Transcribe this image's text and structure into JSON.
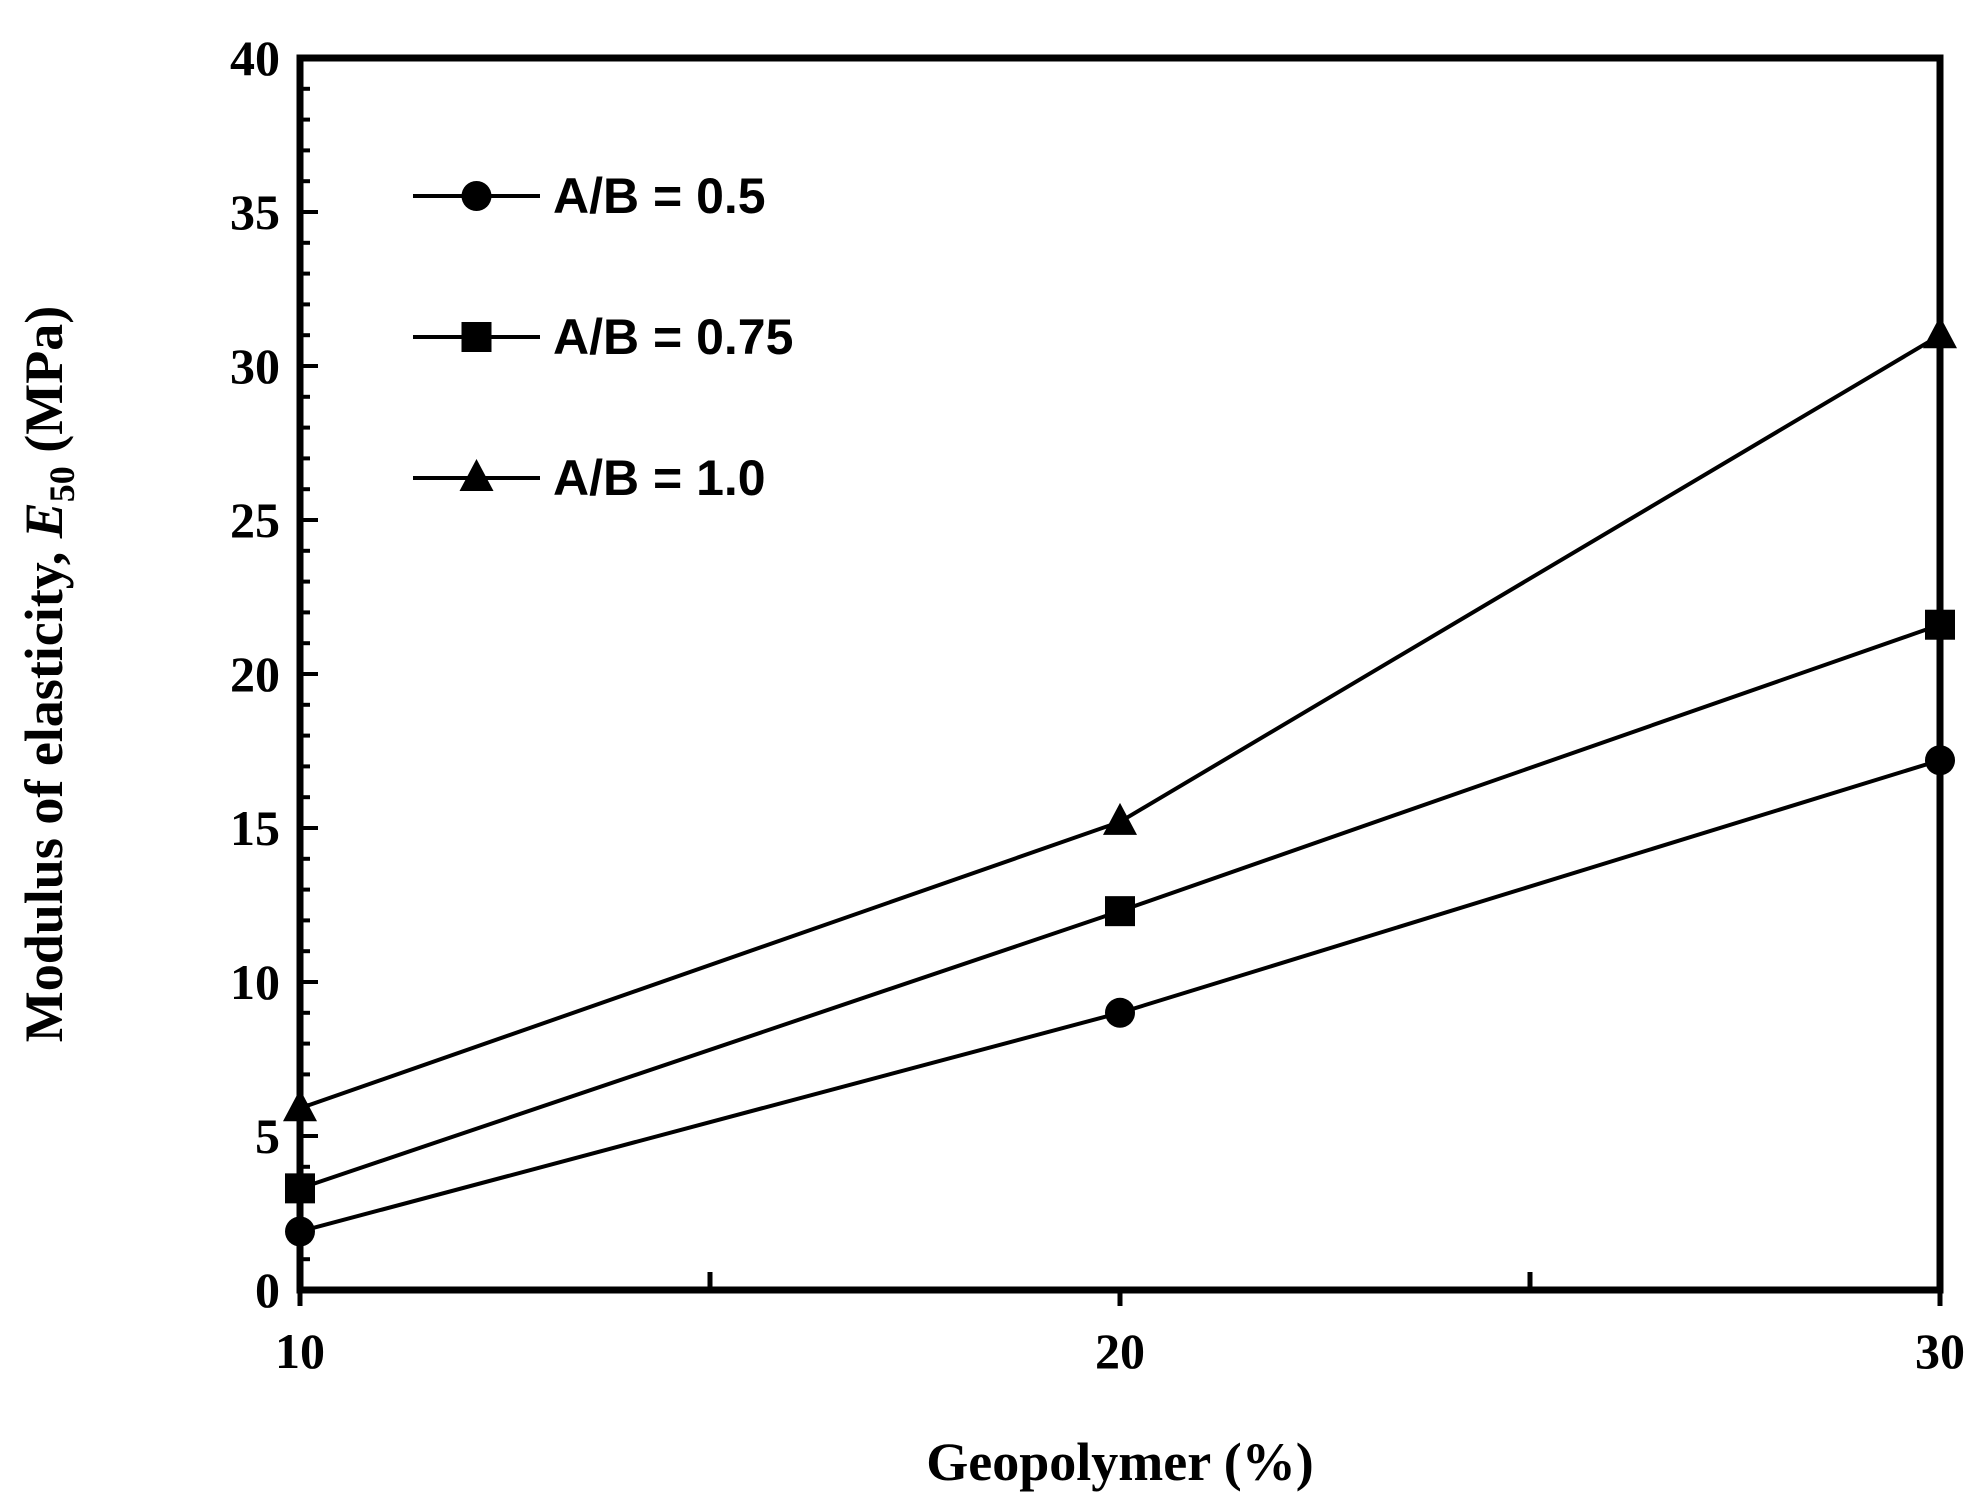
{
  "chart_data": {
    "type": "line",
    "xlabel": "Geopolymer (%)",
    "ylabel_main": "Modulus of elasticity, ",
    "ylabel_symbol": "E",
    "ylabel_subscript": "50",
    "ylabel_unit": " (MPa)",
    "xlim": [
      10,
      30
    ],
    "ylim": [
      0,
      40
    ],
    "x_ticks": [
      10,
      20,
      30
    ],
    "y_ticks": [
      0,
      5,
      10,
      15,
      20,
      25,
      30,
      35,
      40
    ],
    "grid": false,
    "legend_position": "top-left",
    "x": [
      10,
      20,
      30
    ],
    "series": [
      {
        "name": "A/B = 0.5",
        "marker": "circle",
        "values": [
          1.9,
          9.0,
          17.2
        ]
      },
      {
        "name": "A/B = 0.75",
        "marker": "square",
        "values": [
          3.3,
          12.3,
          21.6
        ]
      },
      {
        "name": "A/B = 1.0",
        "marker": "triangle",
        "values": [
          5.9,
          15.2,
          31.0
        ]
      }
    ],
    "line_color": "#000000"
  }
}
